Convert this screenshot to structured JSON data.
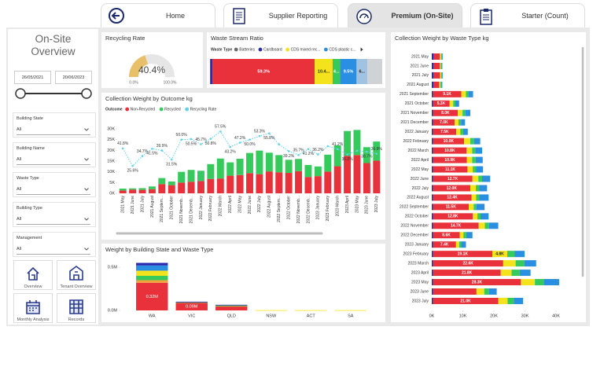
{
  "tabs": [
    "Home",
    "Supplier Reporting",
    "Premium (On-Site)",
    "Starter (Count)"
  ],
  "sidebar": {
    "title": "On-Site Overview",
    "date_start": "26/05/2021",
    "date_end": "20/06/2023",
    "filters": [
      {
        "label": "Building State",
        "value": "All"
      },
      {
        "label": "Building Name",
        "value": "All"
      },
      {
        "label": "Waste Type",
        "value": "All"
      },
      {
        "label": "Building Type",
        "value": "All"
      },
      {
        "label": "Management",
        "value": "All"
      }
    ],
    "nav": [
      "Overview",
      "Tenant Overview",
      "Monthly Analysis",
      "Records"
    ]
  },
  "chart_data": [
    {
      "type": "gauge",
      "title": "Recycling Rate",
      "values": [
        40.4
      ],
      "value_labels": [
        "40.4%"
      ],
      "color": "#e8c06a",
      "xlim": [
        0,
        100
      ],
      "xticks": [
        {
          "value": 0,
          "label": "0.0%"
        },
        {
          "value": 100,
          "label": "100.0%"
        }
      ]
    },
    {
      "type": "stacked-bar-100",
      "title": "Waste Stream Ratio",
      "legend_title": "Waste Type",
      "xlim": [
        0,
        100
      ],
      "series": [
        {
          "name": "Batteries",
          "color": "#6b6b6b",
          "values": [
            0.2
          ]
        },
        {
          "name": "Cardboard",
          "color": "#2b2bb0",
          "values": [
            1.3
          ]
        },
        {
          "color": "#e8313a",
          "values": [
            59.3
          ],
          "value_labels": [
            "59.3%"
          ]
        },
        {
          "name": "CDS mixed rec...",
          "color": "#f4e31c",
          "values": [
            10.4
          ],
          "value_labels": [
            "10.4..."
          ]
        },
        {
          "color": "#36c95b",
          "values": [
            4.4
          ],
          "value_labels": [
            "4..."
          ]
        },
        {
          "name": "CDS plastic c...",
          "color": "#2a8fe0",
          "values": [
            9.5
          ],
          "value_labels": [
            "9.5%"
          ]
        },
        {
          "color": "#9fc3e0",
          "values": [
            6.3
          ],
          "value_labels": [
            "6..."
          ]
        },
        {
          "color": "#cfd3d6",
          "values": [
            8.6
          ]
        }
      ]
    },
    {
      "type": "combo",
      "title": "Collection Weight by Outcome kg",
      "legend_title": "Outcome",
      "categories": [
        "2021 May",
        "2021 June",
        "2021 July",
        "2021 August",
        "2021 Septem...",
        "2021 October",
        "2021 Novemb...",
        "2021 Decemb...",
        "2022 January",
        "2022 February",
        "2022 March",
        "2022 April",
        "2022 May",
        "2022 June",
        "2022 July",
        "2022 August",
        "2022 Septem...",
        "2022 October",
        "2022 Novemb...",
        "2022 Decemb...",
        "2023 January",
        "2023 February",
        "2023 March",
        "2023 April",
        "2023 May",
        "2023 June",
        "2023 July"
      ],
      "ylim": [
        0,
        30000
      ],
      "yticks": [
        {
          "value": 0,
          "label": "0K"
        },
        {
          "value": 5000,
          "label": "5K"
        },
        {
          "value": 10000,
          "label": "10K"
        },
        {
          "value": 15000,
          "label": "15K"
        },
        {
          "value": 20000,
          "label": "20K"
        },
        {
          "value": 25000,
          "label": "25K"
        },
        {
          "value": 30000,
          "label": "30K"
        }
      ],
      "y2lim": [
        0,
        60
      ],
      "series": [
        {
          "name": "Non-Recycled",
          "color": "#e8313a",
          "values": [
            1300,
            1700,
            1600,
            1900,
            4300,
            3800,
            5000,
            5400,
            5700,
            6700,
            6900,
            8200,
            8500,
            9400,
            8900,
            10200,
            9800,
            9500,
            10300,
            7600,
            8000,
            10100,
            12600,
            17400,
            17800,
            14100,
            15200
          ]
        },
        {
          "name": "Recycled",
          "color": "#36c95b",
          "values": [
            900,
            600,
            800,
            1300,
            2800,
            1700,
            5000,
            5500,
            4800,
            6900,
            9300,
            6200,
            7600,
            9400,
            11000,
            8700,
            8000,
            6100,
            5700,
            5600,
            4500,
            7900,
            9700,
            11600,
            11700,
            7400,
            8900
          ]
        },
        {
          "name": "Recycling Rate",
          "color": "#5fd3e8",
          "axis": "y2",
          "values": [
            41.8,
            25.6,
            34.7,
            41.5,
            39.9,
            31.5,
            50.0,
            50.5,
            45.7,
            50.8,
            57.5,
            43.2,
            47.2,
            50.0,
            53.3,
            55.8,
            45.6,
            39.2,
            35.7,
            41.2,
            36.2,
            43.9,
            41.2,
            36.2,
            39.7,
            38.7,
            36.9
          ],
          "value_labels": [
            "41.8%",
            "25.6%",
            "34.7%",
            "41.5%",
            "39.9%",
            "31.5%",
            "50.0%",
            "50.5%",
            "45.7%",
            "50.8%",
            "57.5%",
            "43.2%",
            "47.2%",
            "50.0%",
            "53.3%",
            "55.8%",
            null,
            "39.2%",
            "35.7%",
            "41.2%",
            "36.2%",
            null,
            "41.2%",
            "36.2%",
            null,
            "38.7%",
            "36.9%"
          ]
        }
      ]
    },
    {
      "type": "stacked-column",
      "title": "Weight by Building State and Waste Type",
      "categories": [
        "WA",
        "VIC",
        "QLD",
        "NSW",
        "ACT",
        "SA"
      ],
      "ylim": [
        0,
        600000
      ],
      "yticks": [
        {
          "value": 0,
          "label": "0.0M"
        },
        {
          "value": 500000,
          "label": "0.5M"
        }
      ],
      "series": [
        {
          "color": "#e8313a",
          "values": [
            320000,
            90000,
            50000,
            0,
            0,
            0
          ],
          "value_labels": [
            "0.32M",
            "0.09M",
            null,
            null,
            null,
            null
          ]
        },
        {
          "color": "#f2a33a",
          "values": [
            30000,
            3000,
            2000,
            0,
            0,
            0
          ]
        },
        {
          "color": "#36c95b",
          "values": [
            50000,
            3000,
            3000,
            0,
            0,
            0
          ]
        },
        {
          "color": "#f4e31c",
          "values": [
            60000,
            2000,
            5000,
            3000,
            3000,
            3000
          ]
        },
        {
          "color": "#2a8fe0",
          "values": [
            60000,
            2000,
            4000,
            0,
            0,
            0
          ]
        },
        {
          "color": "#2b2bb0",
          "values": [
            30000,
            1000,
            1000,
            0,
            0,
            0
          ]
        }
      ]
    },
    {
      "type": "stacked-hbar",
      "title": "Collection Weight by Waste Type kg",
      "categories": [
        "2021 May",
        "2021 June",
        "2021 July",
        "2021 August",
        "2021 September",
        "2021 October",
        "2021 November",
        "2021 December",
        "2022 January",
        "2022 February",
        "2022 March",
        "2022 April",
        "2022 May",
        "2022 June",
        "2022 July",
        "2022 August",
        "2022 September",
        "2022 October",
        "2022 November",
        "2022 December",
        "2023 January",
        "2023 February",
        "2023 March",
        "2023 April",
        "2023 May",
        "2023 June",
        "2023 July"
      ],
      "xlim": [
        0,
        45000
      ],
      "xticks": [
        {
          "value": 0,
          "label": "0K"
        },
        {
          "value": 10000,
          "label": "10K"
        },
        {
          "value": 20000,
          "label": "20K"
        },
        {
          "value": 30000,
          "label": "30K"
        },
        {
          "value": 40000,
          "label": "40K"
        }
      ],
      "series": [
        {
          "color": "#2b2bb0",
          "values": [
            600,
            500,
            500,
            500,
            400,
            400,
            400,
            400,
            400,
            400,
            400,
            400,
            400,
            400,
            400,
            400,
            400,
            400,
            400,
            400,
            400,
            400,
            400,
            400,
            400,
            400,
            400
          ]
        },
        {
          "color": "#e8313a",
          "values": [
            2000,
            2100,
            2200,
            1900,
            9100,
            5300,
            8000,
            7000,
            7500,
            10000,
            10800,
            10900,
            11100,
            12700,
            12000,
            12400,
            11500,
            12800,
            14700,
            8600,
            7400,
            19100,
            22600,
            21800,
            28300,
            14000,
            21000
          ],
          "value_labels": [
            null,
            null,
            null,
            null,
            "9.1K",
            "5.3K",
            "8.0K",
            "7.0K",
            "7.5K",
            "10.0K",
            "10.8K",
            "10.9K",
            "11.1K",
            "12.7K",
            "12.0K",
            "12.4K",
            "11.5K",
            "12.8K",
            "14.7K",
            "8.6K",
            "7.4K",
            "19.1K",
            "22.6K",
            "21.8K",
            "28.3K",
            null,
            "21.0K"
          ]
        },
        {
          "color": "#f4e31c",
          "values": [
            400,
            300,
            300,
            400,
            1500,
            1200,
            1500,
            1200,
            1300,
            2000,
            1800,
            1700,
            1700,
            1900,
            1800,
            1500,
            1600,
            1500,
            2000,
            1200,
            1000,
            4800,
            4000,
            3500,
            4500,
            2500,
            3000
          ],
          "value_labels": [
            null,
            null,
            null,
            null,
            null,
            null,
            null,
            null,
            null,
            null,
            null,
            null,
            null,
            null,
            null,
            null,
            null,
            null,
            null,
            null,
            null,
            "4.8K",
            null,
            null,
            null,
            null,
            null
          ]
        },
        {
          "color": "#36c95b",
          "values": [
            200,
            200,
            200,
            300,
            800,
            700,
            1000,
            800,
            900,
            1200,
            1000,
            1100,
            1000,
            1200,
            1100,
            1000,
            900,
            1000,
            1300,
            900,
            700,
            2400,
            2800,
            2600,
            3000,
            1500,
            2000
          ]
        },
        {
          "color": "#2a8fe0",
          "values": [
            300,
            300,
            300,
            300,
            1500,
            1200,
            1500,
            1300,
            1500,
            2000,
            2200,
            2300,
            2300,
            2600,
            2500,
            3000,
            2600,
            2600,
            3000,
            2000,
            1500,
            3200,
            3800,
            3500,
            4800,
            2500,
            3000
          ]
        }
      ]
    }
  ]
}
